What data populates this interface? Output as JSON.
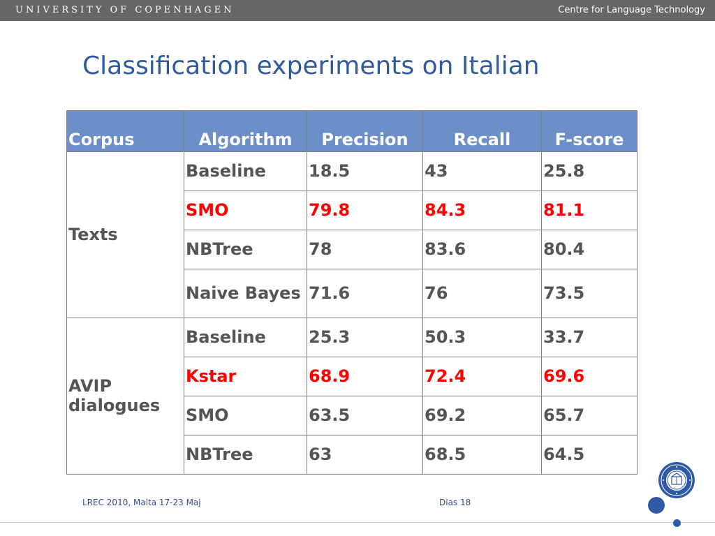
{
  "header": {
    "university": "UNIVERSITY OF COPENHAGEN",
    "department": "Centre for Language Technology"
  },
  "slide": {
    "title": "Classification experiments on Italian"
  },
  "table": {
    "headers": [
      "Corpus",
      "Algorithm",
      "Precision",
      "Recall",
      "F-score"
    ],
    "groups": [
      {
        "corpus": "Texts",
        "rows": [
          {
            "algorithm": "Baseline",
            "precision": "18.5",
            "recall": "43",
            "fscore": "25.8",
            "highlight": false
          },
          {
            "algorithm": "SMO",
            "precision": "79.8",
            "recall": "84.3",
            "fscore": "81.1",
            "highlight": true
          },
          {
            "algorithm": "NBTree",
            "precision": "78",
            "recall": "83.6",
            "fscore": "80.4",
            "highlight": false
          },
          {
            "algorithm": "Naive Bayes",
            "precision": "71.6",
            "recall": "76",
            "fscore": "73.5",
            "highlight": false
          }
        ]
      },
      {
        "corpus": "AVIP dialogues",
        "rows": [
          {
            "algorithm": "Baseline",
            "precision": "25.3",
            "recall": "50.3",
            "fscore": "33.7",
            "highlight": false
          },
          {
            "algorithm": "Kstar",
            "precision": "68.9",
            "recall": "72.4",
            "fscore": "69.6",
            "highlight": true
          },
          {
            "algorithm": "SMO",
            "precision": "63.5",
            "recall": "69.2",
            "fscore": "65.7",
            "highlight": false
          },
          {
            "algorithm": "NBTree",
            "precision": "63",
            "recall": "68.5",
            "fscore": "64.5",
            "highlight": false
          }
        ]
      }
    ]
  },
  "footer": {
    "event": "LREC 2010, Malta 17-23 Maj",
    "slide_number": "Dias 18"
  },
  "colors": {
    "title": "#2f5a9e",
    "header_bg": "#6d8fc7",
    "highlight": "#ff0000",
    "text": "#555555",
    "topbar": "#666666"
  },
  "icons": {
    "seal": "university-seal-icon"
  }
}
